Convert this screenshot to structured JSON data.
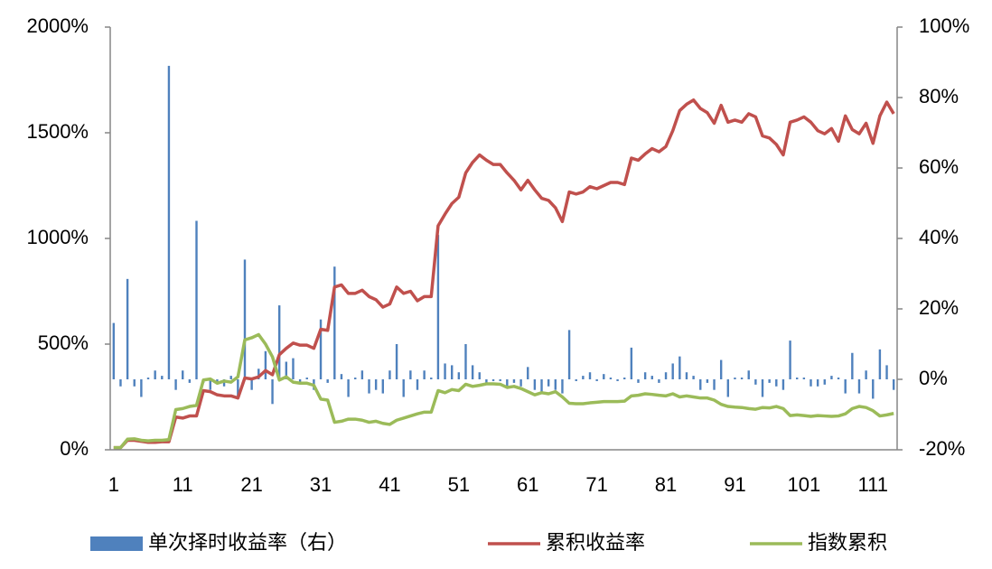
{
  "chart_data": {
    "type": "combo",
    "categories": [
      1,
      null,
      null,
      null,
      null,
      null,
      null,
      null,
      null,
      null,
      11,
      null,
      null,
      null,
      null,
      null,
      null,
      null,
      null,
      null,
      21,
      null,
      null,
      null,
      null,
      null,
      null,
      null,
      null,
      null,
      31,
      null,
      null,
      null,
      null,
      null,
      null,
      null,
      null,
      null,
      41,
      null,
      null,
      null,
      null,
      null,
      null,
      null,
      null,
      null,
      51,
      null,
      null,
      null,
      null,
      null,
      null,
      null,
      null,
      null,
      61,
      null,
      null,
      null,
      null,
      null,
      null,
      null,
      null,
      null,
      71,
      null,
      null,
      null,
      null,
      null,
      null,
      null,
      null,
      null,
      81,
      null,
      null,
      null,
      null,
      null,
      null,
      null,
      null,
      null,
      91,
      null,
      null,
      null,
      null,
      null,
      null,
      null,
      null,
      null,
      101,
      null,
      null,
      null,
      null,
      null,
      null,
      null,
      null,
      null,
      111,
      null,
      null,
      null
    ],
    "series": [
      {
        "name": "单次择时收益率（右）",
        "type": "bar",
        "axis": "y2",
        "color": "#4f81bd",
        "values": [
          16,
          -2,
          28.5,
          -2,
          -5,
          0.5,
          2.5,
          1,
          89,
          -3,
          2.5,
          -1,
          45,
          -1,
          -3,
          -1,
          -2,
          1,
          -5,
          34,
          -3,
          3,
          8,
          -7,
          21,
          5,
          6,
          -1,
          0.5,
          -3,
          17,
          -1,
          32,
          1.5,
          -5,
          0.5,
          2.5,
          -4,
          -3,
          -4,
          2.5,
          10,
          -5,
          2.5,
          -3,
          2.5,
          0.5,
          41,
          4.5,
          4,
          2,
          10,
          4,
          2,
          -1,
          -0.5,
          -0.5,
          -2,
          -1,
          -2,
          3.5,
          -3,
          -4,
          -2,
          -3,
          -4,
          14,
          -0.5,
          1,
          2,
          -0.5,
          1.5,
          0.5,
          -0.5,
          0.5,
          9,
          -1,
          2,
          1,
          -1,
          2,
          4.5,
          6.5,
          2,
          1,
          -3,
          -1,
          -3,
          5.5,
          -5,
          0.5,
          0.5,
          2.5,
          -1.5,
          -5,
          -1,
          -2,
          -3,
          11,
          0.5,
          0.5,
          -2,
          -2,
          -1.5,
          1,
          0.5,
          -4,
          7.5,
          -4,
          2.5,
          -5.5,
          8.5,
          4,
          -3
        ]
      },
      {
        "name": "累积收益率",
        "type": "line",
        "color": "#c0504d",
        "values": [
          10,
          10,
          45,
          45,
          40,
          35,
          35,
          38,
          38,
          155,
          150,
          160,
          160,
          280,
          275,
          260,
          255,
          255,
          245,
          340,
          335,
          345,
          375,
          355,
          450,
          480,
          505,
          495,
          495,
          480,
          570,
          565,
          770,
          780,
          740,
          740,
          755,
          725,
          710,
          675,
          690,
          770,
          740,
          750,
          705,
          725,
          725,
          1060,
          1115,
          1165,
          1195,
          1310,
          1360,
          1395,
          1370,
          1350,
          1350,
          1310,
          1275,
          1230,
          1275,
          1230,
          1190,
          1180,
          1145,
          1080,
          1220,
          1210,
          1220,
          1245,
          1235,
          1250,
          1265,
          1265,
          1255,
          1380,
          1370,
          1400,
          1425,
          1410,
          1435,
          1510,
          1605,
          1635,
          1655,
          1615,
          1595,
          1545,
          1630,
          1550,
          1560,
          1550,
          1590,
          1575,
          1485,
          1475,
          1445,
          1395,
          1550,
          1560,
          1575,
          1550,
          1510,
          1495,
          1520,
          1460,
          1580,
          1515,
          1495,
          1545,
          1450,
          1580,
          1645,
          1590
        ]
      },
      {
        "name": "指数累积",
        "type": "line",
        "color": "#9bbb59",
        "values": [
          10,
          10,
          50,
          52,
          45,
          42,
          45,
          45,
          48,
          190,
          195,
          205,
          210,
          330,
          335,
          315,
          325,
          320,
          345,
          520,
          530,
          545,
          500,
          440,
          330,
          345,
          320,
          315,
          315,
          305,
          240,
          235,
          130,
          135,
          145,
          145,
          140,
          130,
          135,
          125,
          120,
          140,
          150,
          160,
          170,
          178,
          178,
          280,
          270,
          285,
          280,
          310,
          300,
          305,
          312,
          312,
          310,
          295,
          300,
          290,
          275,
          260,
          270,
          265,
          275,
          250,
          220,
          218,
          218,
          222,
          225,
          228,
          228,
          228,
          230,
          255,
          258,
          265,
          262,
          258,
          255,
          265,
          250,
          255,
          250,
          245,
          245,
          235,
          215,
          205,
          202,
          200,
          195,
          192,
          200,
          198,
          205,
          195,
          162,
          165,
          162,
          158,
          162,
          160,
          158,
          160,
          170,
          195,
          205,
          200,
          185,
          160,
          165,
          172
        ]
      }
    ],
    "ylim": [
      0,
      2000
    ],
    "yticks": [
      {
        "value": 0,
        "label": "0%"
      },
      {
        "value": 500,
        "label": "500%"
      },
      {
        "value": 1000,
        "label": "1000%"
      },
      {
        "value": 1500,
        "label": "1500%"
      },
      {
        "value": 2000,
        "label": "2000%"
      }
    ],
    "y2lim": [
      -20,
      100
    ],
    "y2ticks": [
      {
        "value": -20,
        "label": "-20%"
      },
      {
        "value": 0,
        "label": "0%"
      },
      {
        "value": 20,
        "label": "20%"
      },
      {
        "value": 40,
        "label": "40%"
      },
      {
        "value": 60,
        "label": "60%"
      },
      {
        "value": 80,
        "label": "80%"
      },
      {
        "value": 100,
        "label": "100%"
      }
    ],
    "legend": "bottom"
  }
}
